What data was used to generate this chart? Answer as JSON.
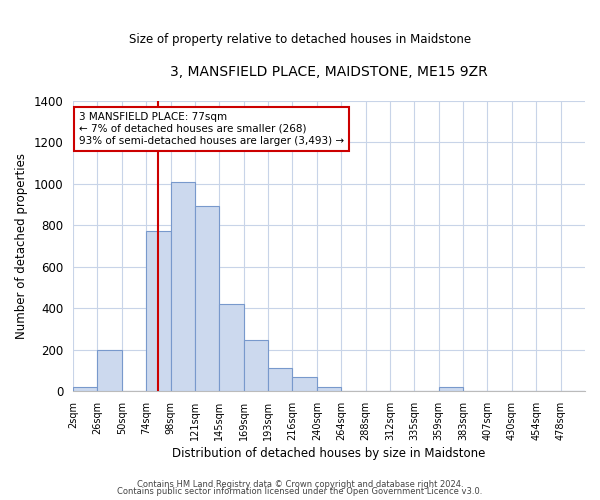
{
  "title": "3, MANSFIELD PLACE, MAIDSTONE, ME15 9ZR",
  "subtitle": "Size of property relative to detached houses in Maidstone",
  "xlabel": "Distribution of detached houses by size in Maidstone",
  "ylabel": "Number of detached properties",
  "bar_labels": [
    "2sqm",
    "26sqm",
    "50sqm",
    "74sqm",
    "98sqm",
    "121sqm",
    "145sqm",
    "169sqm",
    "193sqm",
    "216sqm",
    "240sqm",
    "264sqm",
    "288sqm",
    "312sqm",
    "335sqm",
    "359sqm",
    "383sqm",
    "407sqm",
    "430sqm",
    "454sqm",
    "478sqm"
  ],
  "bar_values": [
    20,
    200,
    0,
    775,
    1010,
    895,
    420,
    245,
    110,
    70,
    20,
    0,
    0,
    0,
    0,
    20,
    0,
    0,
    0,
    0,
    0
  ],
  "bar_color": "#ccd9ee",
  "bar_edge_color": "#7899cc",
  "vline_color": "#cc0000",
  "annotation_text": "3 MANSFIELD PLACE: 77sqm\n← 7% of detached houses are smaller (268)\n93% of semi-detached houses are larger (3,493) →",
  "annotation_box_color": "#ffffff",
  "annotation_box_edge": "#cc0000",
  "ylim": [
    0,
    1400
  ],
  "yticks": [
    0,
    200,
    400,
    600,
    800,
    1000,
    1200,
    1400
  ],
  "footer1": "Contains HM Land Registry data © Crown copyright and database right 2024.",
  "footer2": "Contains public sector information licensed under the Open Government Licence v3.0.",
  "bg_color": "#ffffff",
  "grid_color": "#c8d4e8"
}
